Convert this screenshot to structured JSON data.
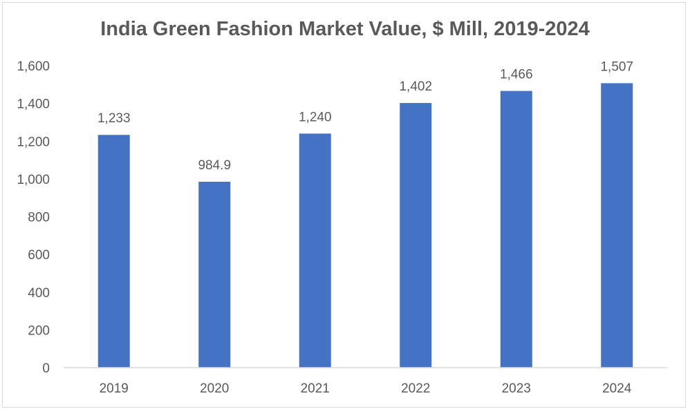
{
  "chart_data": {
    "type": "bar",
    "title": "India Green Fashion Market Value, $ Mill, 2019-2024",
    "categories": [
      "2019",
      "2020",
      "2021",
      "2022",
      "2023",
      "2024"
    ],
    "values": [
      1233,
      984.9,
      1240,
      1402,
      1466,
      1507
    ],
    "data_labels": [
      "1,233",
      "984.9",
      "1,240",
      "1,402",
      "1,466",
      "1,507"
    ],
    "ylim": [
      0,
      1600
    ],
    "yticks": [
      "0",
      "200",
      "400",
      "600",
      "800",
      "1,000",
      "1,200",
      "1,400",
      "1,600"
    ],
    "xlabel": "",
    "ylabel": "",
    "grid": false,
    "legend": "none",
    "bar_color": "#4472C4"
  }
}
